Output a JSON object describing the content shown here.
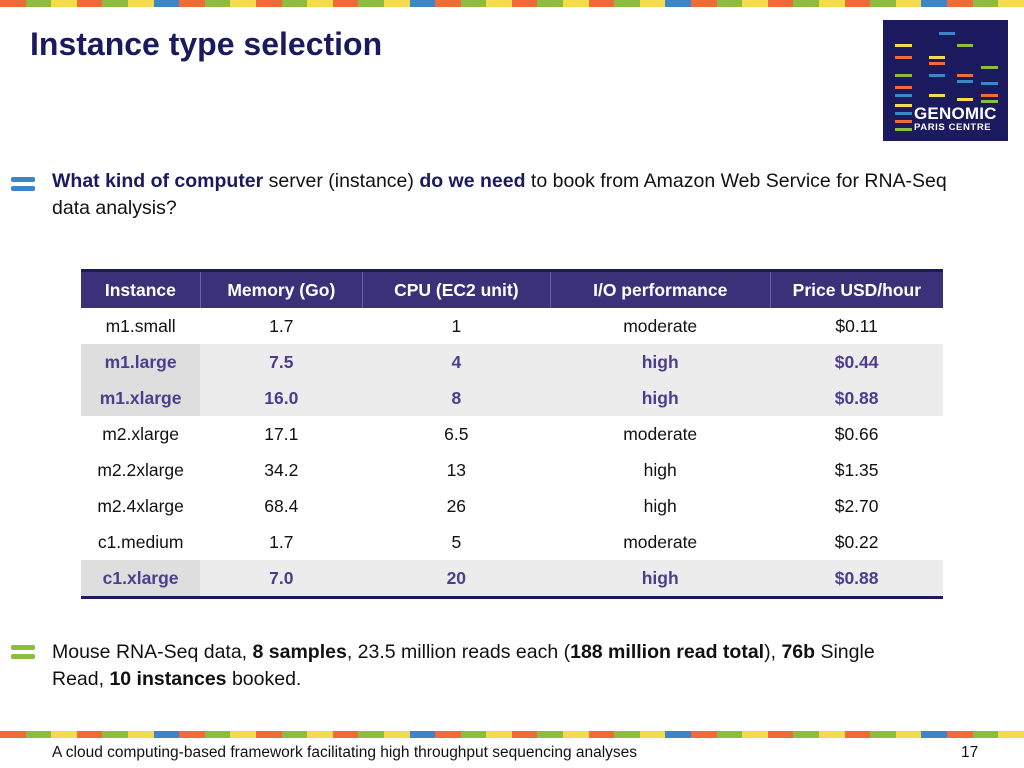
{
  "title": "Instance type selection",
  "logo": {
    "line1": "GENOMIC",
    "line2": "PARIS CENTRE"
  },
  "question": {
    "segments": [
      {
        "text": "What kind of computer",
        "bold": true
      },
      {
        "text": " server (instance) ",
        "bold": false
      },
      {
        "text": "do we need",
        "bold": true
      },
      {
        "text": " to book from Amazon Web Service for RNA-Seq data analysis?",
        "bold": false
      }
    ]
  },
  "table": {
    "headers": [
      "Instance",
      "Memory (Go)",
      "CPU (EC2 unit)",
      "I/O performance",
      "Price USD/hour"
    ],
    "rows": [
      {
        "cells": [
          "m1.small",
          "1.7",
          "1",
          "moderate",
          "$0.11"
        ],
        "highlighted": false
      },
      {
        "cells": [
          "m1.large",
          "7.5",
          "4",
          "high",
          "$0.44"
        ],
        "highlighted": true
      },
      {
        "cells": [
          "m1.xlarge",
          "16.0",
          "8",
          "high",
          "$0.88"
        ],
        "highlighted": true
      },
      {
        "cells": [
          "m2.xlarge",
          "17.1",
          "6.5",
          "moderate",
          "$0.66"
        ],
        "highlighted": false
      },
      {
        "cells": [
          "m2.2xlarge",
          "34.2",
          "13",
          "high",
          "$1.35"
        ],
        "highlighted": false
      },
      {
        "cells": [
          "m2.4xlarge",
          "68.4",
          "26",
          "high",
          "$2.70"
        ],
        "highlighted": false
      },
      {
        "cells": [
          "c1.medium",
          "1.7",
          "5",
          "moderate",
          "$0.22"
        ],
        "highlighted": false
      },
      {
        "cells": [
          "c1.xlarge",
          "7.0",
          "20",
          "high",
          "$0.88"
        ],
        "highlighted": true
      }
    ]
  },
  "summary": {
    "segments": [
      {
        "text": "Mouse RNA-Seq data, ",
        "bold": false
      },
      {
        "text": "8 samples",
        "bold": true
      },
      {
        "text": ", 23.5 million reads each (",
        "bold": false
      },
      {
        "text": "188 million read total",
        "bold": true
      },
      {
        "text": "), ",
        "bold": false
      },
      {
        "text": "76b",
        "bold": true
      },
      {
        "text": " Single Read, ",
        "bold": false
      },
      {
        "text": "10 instances",
        "bold": true
      },
      {
        "text": " booked.",
        "bold": false
      }
    ]
  },
  "footer": "A cloud computing-based framework facilitating high throughput sequencing analyses",
  "page_number": "17",
  "colors": {
    "navy": "#1b1a5e",
    "table_header": "#3b3179",
    "highlight_text": "#4e3d8f",
    "bullet_blue": "#3b86c6",
    "bullet_green": "#8cbd3c",
    "stripe": [
      "#f26a36",
      "#8cbd3c",
      "#f5d94e",
      "#f26a36",
      "#8cbd3c",
      "#f5d94e",
      "#3b86c6",
      "#f26a36",
      "#8cbd3c",
      "#f5d94e"
    ]
  }
}
